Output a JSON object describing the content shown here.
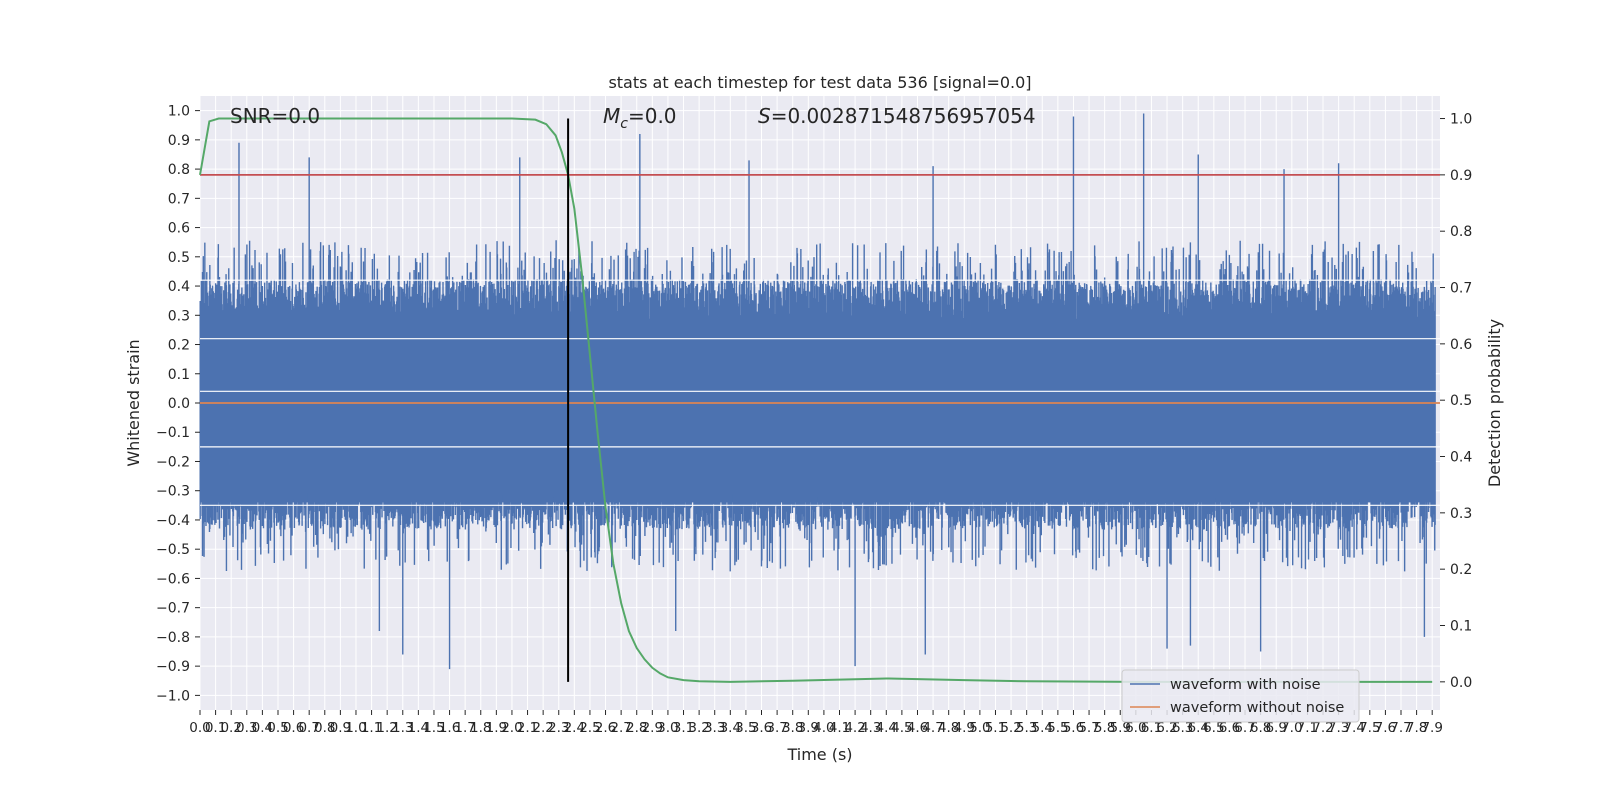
{
  "chart_data": {
    "type": "line",
    "title": "stats at each timestep for test data 536 [signal=0.0]",
    "xlabel": "Time (s)",
    "ylabel_left": "Whitened strain",
    "ylabel_right": "Detection probability",
    "xlim": [
      0.0,
      7.95
    ],
    "ylim_left": [
      -1.05,
      1.05
    ],
    "ylim_right": [
      -0.05,
      1.04
    ],
    "grid": true,
    "x_ticks": [
      "0.0",
      "0.1",
      "0.2",
      "0.3",
      "0.4",
      "0.5",
      "0.6",
      "0.7",
      "0.8",
      "0.9",
      "1.0",
      "1.1",
      "1.2",
      "1.3",
      "1.4",
      "1.5",
      "1.6",
      "1.7",
      "1.8",
      "1.9",
      "2.0",
      "2.1",
      "2.2",
      "2.3",
      "2.4",
      "2.5",
      "2.6",
      "2.7",
      "2.8",
      "2.9",
      "3.0",
      "3.1",
      "3.2",
      "3.3",
      "3.4",
      "3.5",
      "3.6",
      "3.7",
      "3.8",
      "3.9",
      "4.0",
      "4.1",
      "4.2",
      "4.3",
      "4.4",
      "4.5",
      "4.6",
      "4.7",
      "4.8",
      "4.9",
      "5.0",
      "5.1",
      "5.2",
      "5.3",
      "5.4",
      "5.5",
      "5.6",
      "5.7",
      "5.8",
      "5.9",
      "6.0",
      "6.1",
      "6.2",
      "6.3",
      "6.4",
      "6.5",
      "6.6",
      "6.7",
      "6.8",
      "6.9",
      "7.0",
      "7.1",
      "7.2",
      "7.3",
      "7.4",
      "7.5",
      "7.6",
      "7.7",
      "7.8",
      "7.9"
    ],
    "y_ticks_left": [
      "−1.0",
      "−0.9",
      "−0.8",
      "−0.7",
      "−0.6",
      "−0.5",
      "−0.4",
      "−0.3",
      "−0.2",
      "−0.1",
      "0.0",
      "0.1",
      "0.2",
      "0.3",
      "0.4",
      "0.5",
      "0.6",
      "0.7",
      "0.8",
      "0.9",
      "1.0"
    ],
    "y_ticks_right": [
      "0.0",
      "0.1",
      "0.2",
      "0.3",
      "0.4",
      "0.5",
      "0.6",
      "0.7",
      "0.8",
      "0.9",
      "1.0"
    ],
    "annotations": {
      "snr": "SNR=0.0",
      "mc_symbol": "M",
      "mc_sub": "c",
      "mc_value": "=0.0",
      "s_symbol": "S",
      "s_value": "=0.002871548756957054"
    },
    "legend": {
      "placement": "lower right",
      "entries": [
        "waveform with noise",
        "waveform without noise"
      ]
    },
    "series": [
      {
        "name": "waveform with noise",
        "color": "#4c72b0",
        "axis": "left",
        "envelope": "dense noise, mostly within -0.45..0.45",
        "peaks_x": [
          0.25,
          0.7,
          2.05,
          2.82,
          3.52,
          4.7,
          5.6,
          6.05,
          6.4,
          6.95,
          7.3
        ],
        "peaks_y": [
          0.89,
          0.84,
          0.84,
          0.92,
          0.83,
          0.81,
          0.98,
          0.99,
          0.85,
          0.8,
          0.82
        ],
        "troughs_x": [
          1.15,
          1.3,
          1.6,
          3.05,
          4.2,
          4.65,
          6.2,
          6.35,
          6.8,
          7.85
        ],
        "troughs_y": [
          -0.78,
          -0.86,
          -0.91,
          -0.78,
          -0.9,
          -0.86,
          -0.84,
          -0.83,
          -0.85,
          -0.8
        ]
      },
      {
        "name": "waveform without noise",
        "color": "#dd8452",
        "axis": "left",
        "y": 0.0
      },
      {
        "name": "detection probability",
        "color": "#55a868",
        "axis": "right",
        "x": [
          0.0,
          0.06,
          0.12,
          0.5,
          1.0,
          1.5,
          2.0,
          2.15,
          2.22,
          2.28,
          2.32,
          2.36,
          2.4,
          2.45,
          2.5,
          2.55,
          2.6,
          2.65,
          2.7,
          2.75,
          2.8,
          2.85,
          2.9,
          2.95,
          3.0,
          3.1,
          3.2,
          3.4,
          3.8,
          4.4,
          4.9,
          5.3,
          6.0,
          7.0,
          7.9
        ],
        "y": [
          0.9,
          0.995,
          1.0,
          1.0,
          1.0,
          1.0,
          1.0,
          0.998,
          0.99,
          0.97,
          0.94,
          0.9,
          0.84,
          0.72,
          0.58,
          0.44,
          0.31,
          0.21,
          0.14,
          0.09,
          0.06,
          0.04,
          0.025,
          0.015,
          0.008,
          0.003,
          0.001,
          0.0,
          0.002,
          0.006,
          0.003,
          0.001,
          0.0,
          0.0,
          0.0
        ]
      },
      {
        "name": "threshold",
        "color": "#c44e52",
        "axis": "right",
        "y": 0.9
      },
      {
        "name": "event marker",
        "color": "#000000",
        "axis": "vertical",
        "x": 2.36,
        "y_range_right": [
          0.0,
          1.0
        ]
      }
    ]
  }
}
